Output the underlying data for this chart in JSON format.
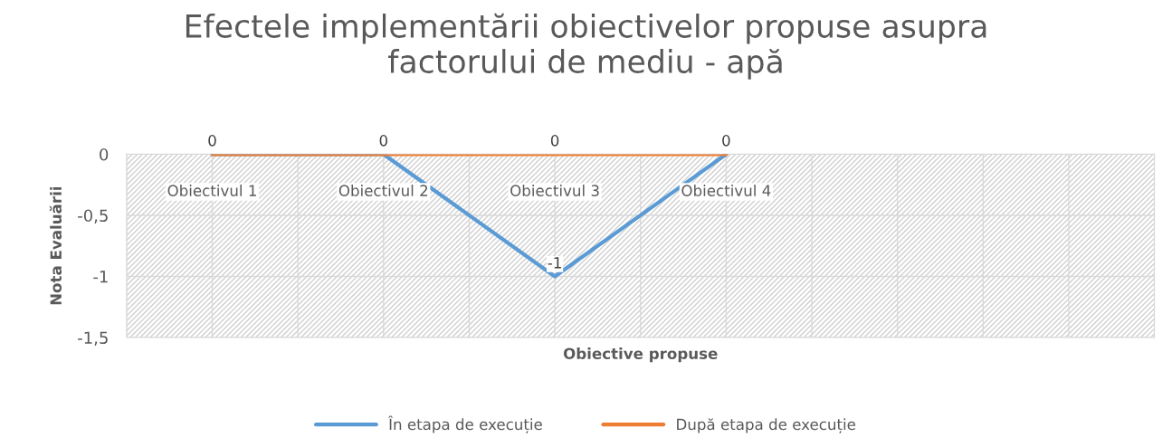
{
  "chart_data": {
    "type": "line",
    "title": "Efectele implementării obiectivelor propuse asupra\nfactorului de mediu - apă",
    "xlabel": "Obiective propuse",
    "ylabel": "Nota Evaluării",
    "categories": [
      "Obiectivul 1",
      "Obiectivul 2",
      "Obiectivul 3",
      "Obiectivul 4",
      null,
      null
    ],
    "series": [
      {
        "name": "În etapa de execuție",
        "color": "#5b9bd5",
        "values": [
          0,
          0,
          -1,
          0,
          null,
          null
        ],
        "value_labels": [
          null,
          null,
          "-1",
          null,
          null,
          null
        ]
      },
      {
        "name": "După etapa de execuție",
        "color": "#ed7d31",
        "values": [
          0,
          0,
          0,
          0,
          null,
          null
        ],
        "value_labels": [
          "0",
          "0",
          "0",
          "0",
          null,
          null
        ]
      }
    ],
    "ylim": [
      -1.5,
      0
    ],
    "yticks": [
      0,
      {
        "value": -0.5,
        "label": "-0,5"
      },
      {
        "value": -1,
        "label": "-1"
      },
      {
        "value": -1.5,
        "label": "-1,5"
      }
    ],
    "grid": true,
    "legend": "bottom",
    "marker": "none",
    "line_style": "solid"
  }
}
